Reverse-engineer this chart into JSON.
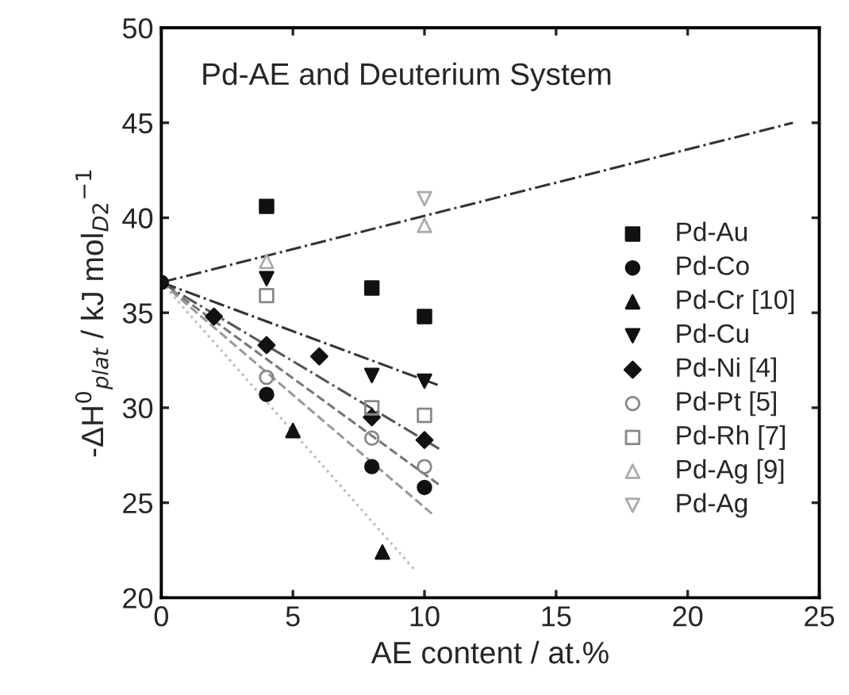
{
  "chart_data": {
    "type": "scatter",
    "title": "Pd-AE and Deuterium System",
    "xlabel": "AE content / at.%",
    "ylabel": "-ΔH$^{0}$$_{plat}$ / kJ mol$_{D2}$$^{−1}$",
    "xlim": [
      0,
      25
    ],
    "ylim": [
      20,
      50
    ],
    "xticks": [
      0,
      5,
      10,
      15,
      20,
      25
    ],
    "yticks": [
      20,
      25,
      30,
      35,
      40,
      45,
      50
    ],
    "grid": false,
    "legend": "right",
    "series": [
      {
        "name": "Pd-Au",
        "color": "#111111",
        "marker": "square",
        "x": [
          4,
          8,
          10
        ],
        "values": [
          40.6,
          36.3,
          34.8
        ]
      },
      {
        "name": "Pd-Co",
        "color": "#111111",
        "marker": "circle",
        "x": [
          4,
          8,
          10
        ],
        "values": [
          30.7,
          26.9,
          25.8
        ]
      },
      {
        "name": "Pd-Cr [10]",
        "color": "#111111",
        "marker": "triangle",
        "x": [
          5,
          8.4
        ],
        "values": [
          28.8,
          22.4
        ]
      },
      {
        "name": "Pd-Cu",
        "color": "#111111",
        "marker": "triangle_down",
        "x": [
          4,
          8,
          10
        ],
        "values": [
          36.8,
          31.7,
          31.4
        ]
      },
      {
        "name": "Pd-Ni [4]",
        "color": "#111111",
        "marker": "diamond",
        "x": [
          2,
          4,
          6,
          8,
          10
        ],
        "values": [
          34.8,
          33.3,
          32.7,
          29.5,
          28.3
        ]
      },
      {
        "name": "Pd-Pt [5]",
        "color": "#888888",
        "marker": "circle_open",
        "x": [
          4,
          8,
          10
        ],
        "values": [
          31.6,
          28.4,
          26.9
        ]
      },
      {
        "name": "Pd-Rh [7]",
        "color": "#888888",
        "marker": "square_open",
        "x": [
          4,
          8,
          10
        ],
        "values": [
          35.9,
          30.0,
          29.6
        ]
      },
      {
        "name": "Pd-Ag [9]",
        "color": "#aaaaaa",
        "marker": "triangle_open",
        "x": [
          4,
          10
        ],
        "values": [
          37.7,
          39.6
        ]
      },
      {
        "name": "Pd-Ag",
        "color": "#aaaaaa",
        "marker": "triangle_down_open",
        "x": [
          10
        ],
        "values": [
          41.0
        ]
      },
      {
        "color": "#111111",
        "marker": "circle",
        "x": [
          0
        ],
        "values": [
          36.6
        ]
      },
      {
        "type": "line",
        "color": "#333333",
        "line_style": "dashdot",
        "x": [
          0,
          24
        ],
        "values": [
          36.6,
          45.0
        ]
      },
      {
        "type": "line",
        "color": "#333333",
        "line_style": "dashdot",
        "x": [
          0,
          10.5
        ],
        "values": [
          36.6,
          31.2
        ]
      },
      {
        "type": "line",
        "color": "#555555",
        "line_style": "dashdot",
        "x": [
          0,
          10.6
        ],
        "values": [
          36.6,
          27.8
        ]
      },
      {
        "type": "line",
        "color": "#777777",
        "line_style": "dashed",
        "x": [
          0,
          10.6
        ],
        "values": [
          36.6,
          25.9
        ]
      },
      {
        "type": "line",
        "color": "#999999",
        "line_style": "dashed",
        "x": [
          0,
          10.3
        ],
        "values": [
          36.6,
          24.4
        ]
      },
      {
        "type": "line",
        "color": "#bbbbbb",
        "line_style": "dotted",
        "x": [
          0,
          9.6
        ],
        "values": [
          36.6,
          21.5
        ]
      }
    ]
  }
}
